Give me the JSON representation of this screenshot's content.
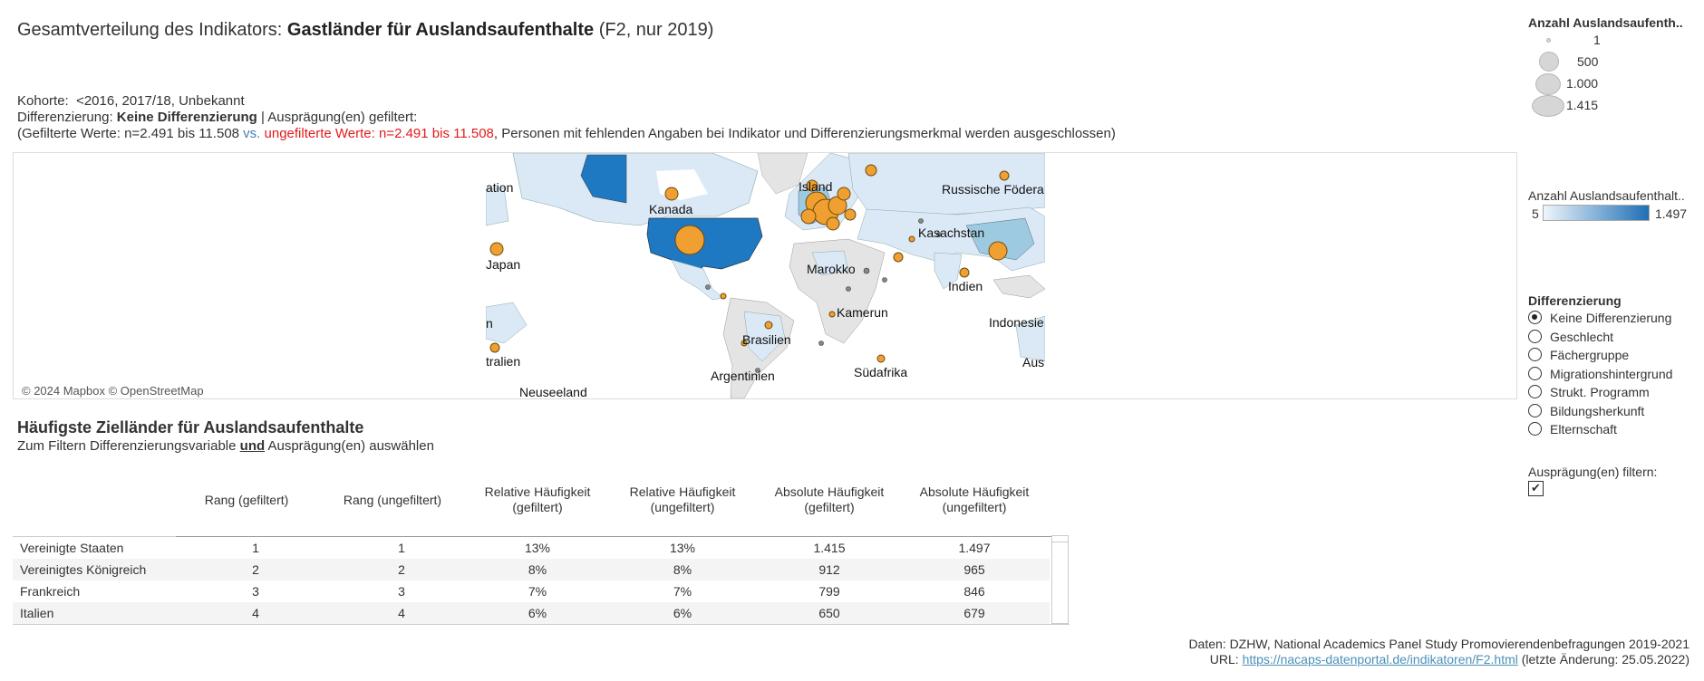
{
  "header": {
    "title_prefix": "Gesamtverteilung des Indikators: ",
    "title_bold": "Gastländer für Auslandsaufenthalte",
    "title_suffix": " (F2, nur 2019)"
  },
  "meta": {
    "kohorte_label": "Kohorte:",
    "kohorte_value": "<2016, 2017/18, Unbekannt",
    "diff_label": "Differenzierung: ",
    "diff_value": "Keine Differenzierung",
    "diff_suffix": " | Ausprägung(en) gefiltert:",
    "filter_prefix": "(Gefilterte Werte: n=2.491 bis 11.508 ",
    "filter_vs": "vs.",
    "filter_unfiltered": " ungefilterte Werte: n=2.491 bis 11.508",
    "filter_suffix": ", Personen mit fehlenden Angaben bei Indikator und Differenzierungsmerkmal werden ausgeschlossen)"
  },
  "map": {
    "copyright": "© 2024 Mapbox © OpenStreetMap",
    "labels": {
      "ation": "ation",
      "kanada": "Kanada",
      "island": "Island",
      "russland": "Russische Födera",
      "japan": "Japan",
      "kasachstan": "Kasachstan",
      "marokko": "Marokko",
      "indien": "Indien",
      "kamerun": "Kamerun",
      "indonesien": "Indonesie",
      "n": "n",
      "brasilien": "Brasilien",
      "australien": "tralien",
      "aus": "Aus",
      "argentinien": "Argentinien",
      "suedafrika": "Südafrika",
      "neuseeland": "Neuseeland"
    },
    "colors": {
      "ocean": "#ffffff",
      "land": "#e4e4e4",
      "low": "#dbe9f6",
      "mid": "#9ecae1",
      "high": "#1f78c2",
      "bubble": "#f0a030",
      "bubble_stroke": "#6b4a10"
    }
  },
  "table": {
    "title": "Häufigste Zielländer für Auslandsaufenthalte",
    "subtitle_prefix": "Zum Filtern Differenzierungsvariable ",
    "subtitle_und": "und",
    "subtitle_suffix": " Ausprägung(en) auswählen",
    "headers": {
      "rang_gef": "Rang (gefiltert)",
      "rang_ungef": "Rang (ungefiltert)",
      "rel_gef_1": "Relative Häufigkeit",
      "rel_gef_2": "(gefiltert)",
      "rel_ungef_1": "Relative Häufigkeit",
      "rel_ungef_2": "(ungefiltert)",
      "abs_gef_1": "Absolute Häufigkeit",
      "abs_gef_2": "(gefiltert)",
      "abs_ungef_1": "Absolute Häufigkeit",
      "abs_ungef_2": "(ungefiltert)"
    },
    "rows": [
      {
        "land": "Vereinigte Staaten",
        "rang_gef": "1",
        "rang_ungef": "1",
        "rel_gef": "13%",
        "rel_ungef": "13%",
        "abs_gef": "1.415",
        "abs_ungef": "1.497"
      },
      {
        "land": "Vereinigtes Königreich",
        "rang_gef": "2",
        "rang_ungef": "2",
        "rel_gef": "8%",
        "rel_ungef": "8%",
        "abs_gef": "912",
        "abs_ungef": "965"
      },
      {
        "land": "Frankreich",
        "rang_gef": "3",
        "rang_ungef": "3",
        "rel_gef": "7%",
        "rel_ungef": "7%",
        "abs_gef": "799",
        "abs_ungef": "846"
      },
      {
        "land": "Italien",
        "rang_gef": "4",
        "rang_ungef": "4",
        "rel_gef": "6%",
        "rel_ungef": "6%",
        "abs_gef": "650",
        "abs_ungef": "679"
      }
    ]
  },
  "legend_size": {
    "title": "Anzahl Auslandsaufenth..",
    "items": [
      "1",
      "500",
      "1.000",
      "1.415"
    ]
  },
  "legend_color": {
    "title": "Anzahl Auslandsaufenthalt..",
    "min": "5",
    "max": "1.497",
    "color_min": "#eef5fb",
    "color_max": "#1f6fb5"
  },
  "differenzierung": {
    "title": "Differenzierung",
    "options": [
      "Keine Differenzierung",
      "Geschlecht",
      "Fächergruppe",
      "Migrationshintergrund",
      "Strukt. Programm",
      "Bildungsherkunft",
      "Elternschaft"
    ],
    "selected": "Keine Differenzierung"
  },
  "filter": {
    "label": "Ausprägung(en) filtern:",
    "checked": "✔"
  },
  "footer": {
    "line1": "Daten: DZHW, National Academics Panel Study Promovierendenbefragungen 2019-2021",
    "url_prefix": "URL: ",
    "url": "https://nacaps-datenportal.de/indikatoren/F2.html",
    "url_suffix": " (letzte Änderung: 25.05.2022)"
  }
}
